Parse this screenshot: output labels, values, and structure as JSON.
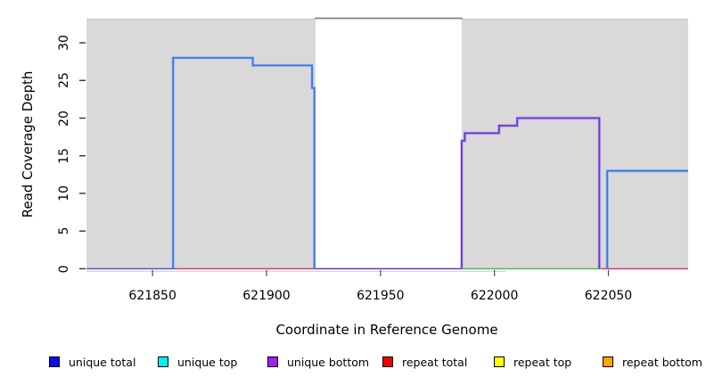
{
  "chart_data": {
    "type": "line",
    "subtype": "step-coverage",
    "title": "",
    "xlabel": "Coordinate in Reference Genome",
    "ylabel": "Read Coverage Depth",
    "xlim": [
      621821,
      622085
    ],
    "ylim": [
      0,
      33.2
    ],
    "x_ticks": [
      621850,
      621900,
      621950,
      622000,
      622050
    ],
    "y_ticks": [
      0,
      5,
      10,
      15,
      20,
      25,
      30
    ],
    "grid": "off",
    "background_color": "#ffffff",
    "shaded_region_color": "#d9d9d9",
    "shaded_regions": [
      {
        "x1": 621821,
        "x2": 621921.5
      },
      {
        "x1": 621985.6,
        "x2": 622085
      }
    ],
    "gap_top_border": {
      "x1": 621921.5,
      "x2": 621985.6,
      "color": "#808080"
    },
    "series": [
      {
        "name": "unique total",
        "color": "#3a79e8",
        "segments": [
          [
            [
              621859,
              0
            ],
            [
              621859,
              28
            ],
            [
              621894,
              28
            ],
            [
              621894,
              27
            ],
            [
              621920,
              27
            ],
            [
              621920,
              24
            ],
            [
              621921,
              24
            ],
            [
              621921,
              0
            ]
          ],
          [
            [
              622049.5,
              0
            ],
            [
              622049.5,
              13
            ],
            [
              622085,
              13
            ]
          ]
        ]
      },
      {
        "name": "unique bottom",
        "color": "#6a35e0",
        "segments": [
          [
            [
              621985.6,
              0
            ],
            [
              621985.6,
              17
            ],
            [
              621987,
              17
            ],
            [
              621987,
              18
            ],
            [
              622002,
              18
            ],
            [
              622002,
              19
            ],
            [
              622010,
              19
            ],
            [
              622010,
              20
            ],
            [
              622046,
              20
            ],
            [
              622046,
              0
            ]
          ]
        ]
      }
    ],
    "baseline_segments": [
      {
        "x1": 621821,
        "x2": 621860,
        "color": "#5a55e8"
      },
      {
        "x1": 621860,
        "x2": 621921.5,
        "color": "#e23a66"
      },
      {
        "x1": 621921.5,
        "x2": 621985.6,
        "color": "#6633dd"
      },
      {
        "x1": 621985.6,
        "x2": 622047,
        "color": "#58be58"
      },
      {
        "x1": 622047,
        "x2": 622085,
        "color": "#e23a66"
      }
    ],
    "baseline_underline": {
      "x1": 621821,
      "x2": 622005,
      "color": "#c9c4ef"
    },
    "legend_position": "bottom",
    "legend": [
      {
        "label": "unique total",
        "color": "#0d0dee"
      },
      {
        "label": "unique top",
        "color": "#00f0f0"
      },
      {
        "label": "unique bottom",
        "color": "#a020f0"
      },
      {
        "label": "repeat total",
        "color": "#f00000"
      },
      {
        "label": "repeat top",
        "color": "#ffff00"
      },
      {
        "label": "repeat bottom",
        "color": "#ffa500"
      }
    ]
  }
}
